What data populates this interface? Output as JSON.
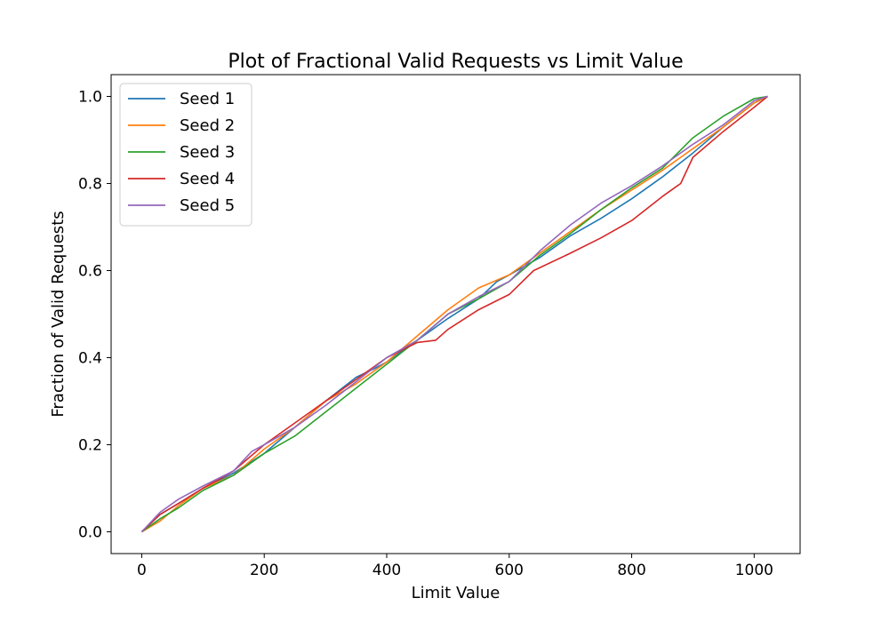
{
  "chart_data": {
    "type": "line",
    "title": "Plot of Fractional Valid Requests vs Limit Value",
    "xlabel": "Limit Value",
    "ylabel": "Fraction of Valid Requests",
    "xlim": [
      -50,
      1075
    ],
    "ylim": [
      -0.05,
      1.05
    ],
    "xticks": [
      0,
      200,
      400,
      600,
      800,
      1000
    ],
    "yticks": [
      0.0,
      0.2,
      0.4,
      0.6,
      0.8,
      1.0
    ],
    "xtick_labels": [
      "0",
      "200",
      "400",
      "600",
      "800",
      "1000"
    ],
    "ytick_labels": [
      "0.0",
      "0.2",
      "0.4",
      "0.6",
      "0.8",
      "1.0"
    ],
    "grid": false,
    "legend_position": "top-left",
    "series": [
      {
        "name": "Seed 1",
        "color": "#1f77b4",
        "x": [
          0,
          30,
          60,
          100,
          150,
          200,
          250,
          300,
          350,
          380,
          400,
          450,
          500,
          550,
          580,
          600,
          650,
          700,
          750,
          800,
          850,
          900,
          950,
          1000,
          1022
        ],
        "y": [
          0.0,
          0.04,
          0.065,
          0.1,
          0.135,
          0.18,
          0.24,
          0.3,
          0.355,
          0.375,
          0.39,
          0.44,
          0.49,
          0.535,
          0.575,
          0.59,
          0.63,
          0.68,
          0.72,
          0.765,
          0.815,
          0.87,
          0.93,
          0.985,
          1.0
        ]
      },
      {
        "name": "Seed 2",
        "color": "#ff7f0e",
        "x": [
          0,
          30,
          60,
          100,
          150,
          200,
          250,
          300,
          350,
          400,
          450,
          500,
          550,
          600,
          650,
          700,
          750,
          800,
          850,
          900,
          950,
          1000,
          1022
        ],
        "y": [
          0.0,
          0.025,
          0.06,
          0.1,
          0.13,
          0.19,
          0.24,
          0.3,
          0.34,
          0.39,
          0.45,
          0.51,
          0.56,
          0.59,
          0.64,
          0.69,
          0.74,
          0.785,
          0.83,
          0.88,
          0.93,
          0.985,
          1.0
        ]
      },
      {
        "name": "Seed 3",
        "color": "#2ca02c",
        "x": [
          0,
          30,
          60,
          100,
          150,
          200,
          250,
          300,
          350,
          400,
          450,
          500,
          550,
          600,
          650,
          700,
          750,
          800,
          850,
          900,
          950,
          1000,
          1022
        ],
        "y": [
          0.0,
          0.03,
          0.055,
          0.095,
          0.13,
          0.18,
          0.22,
          0.275,
          0.33,
          0.385,
          0.44,
          0.5,
          0.535,
          0.575,
          0.635,
          0.685,
          0.74,
          0.79,
          0.835,
          0.905,
          0.955,
          0.995,
          1.0
        ]
      },
      {
        "name": "Seed 4",
        "color": "#d62728",
        "x": [
          0,
          30,
          60,
          100,
          150,
          200,
          250,
          300,
          350,
          400,
          450,
          480,
          500,
          550,
          600,
          640,
          700,
          750,
          800,
          850,
          880,
          900,
          950,
          1000,
          1022
        ],
        "y": [
          0.0,
          0.04,
          0.065,
          0.1,
          0.14,
          0.2,
          0.25,
          0.3,
          0.35,
          0.4,
          0.435,
          0.44,
          0.465,
          0.51,
          0.545,
          0.6,
          0.64,
          0.675,
          0.715,
          0.77,
          0.8,
          0.86,
          0.92,
          0.975,
          1.0
        ]
      },
      {
        "name": "Seed 5",
        "color": "#9467bd",
        "x": [
          0,
          30,
          60,
          100,
          150,
          180,
          200,
          250,
          300,
          350,
          400,
          450,
          500,
          550,
          600,
          650,
          700,
          750,
          800,
          850,
          900,
          950,
          1000,
          1022
        ],
        "y": [
          0.0,
          0.045,
          0.075,
          0.105,
          0.14,
          0.185,
          0.2,
          0.24,
          0.29,
          0.345,
          0.4,
          0.44,
          0.5,
          0.54,
          0.575,
          0.645,
          0.705,
          0.755,
          0.795,
          0.84,
          0.89,
          0.935,
          0.99,
          1.0
        ]
      }
    ]
  }
}
